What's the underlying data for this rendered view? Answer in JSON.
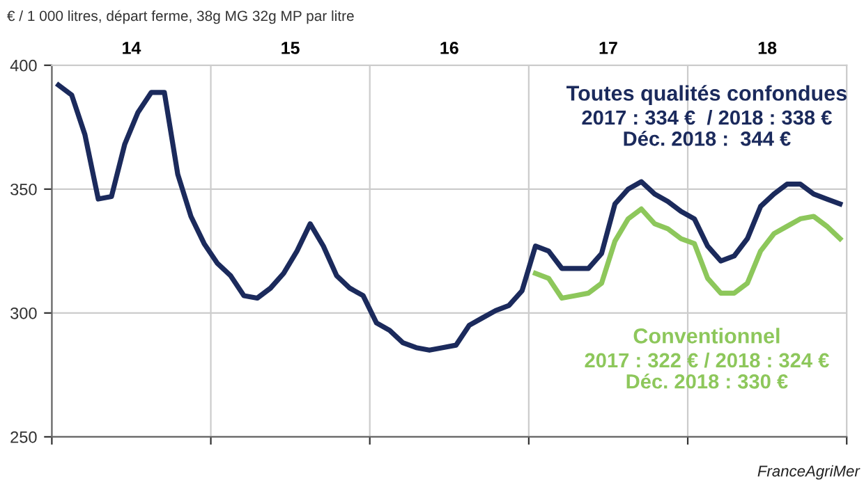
{
  "chart_data": {
    "type": "line",
    "ylabel": "€ / 1 000 litres, départ ferme, 38g MG 32g MP par litre",
    "x": [
      13.542,
      13.625,
      13.708,
      13.792,
      13.875,
      13.958,
      14.042,
      14.125,
      14.208,
      14.292,
      14.375,
      14.458,
      14.542,
      14.625,
      14.708,
      14.792,
      14.875,
      14.958,
      15.042,
      15.125,
      15.208,
      15.292,
      15.375,
      15.458,
      15.542,
      15.625,
      15.708,
      15.792,
      15.875,
      15.958,
      16.042,
      16.125,
      16.208,
      16.292,
      16.375,
      16.458,
      16.542,
      16.625,
      16.708,
      16.792,
      16.875,
      16.958,
      17.042,
      17.125,
      17.208,
      17.292,
      17.375,
      17.458,
      17.542,
      17.625,
      17.708,
      17.792,
      17.875,
      17.958,
      18.042,
      18.125,
      18.208,
      18.292,
      18.375,
      18.458
    ],
    "series": [
      {
        "name": "Toutes qualités confondues",
        "color": "#1b2a5c",
        "values": [
          392,
          388,
          372,
          346,
          347,
          368,
          381,
          389,
          389,
          356,
          339,
          328,
          320,
          315,
          307,
          306,
          310,
          316,
          325,
          336,
          327,
          315,
          310,
          307,
          296,
          293,
          288,
          286,
          285,
          286,
          287,
          295,
          298,
          301,
          303,
          309,
          327,
          325,
          318,
          318,
          318,
          324,
          344,
          350,
          353,
          348,
          345,
          341,
          338,
          327,
          321,
          323,
          330,
          343,
          348,
          352,
          352,
          348,
          346,
          344
        ]
      },
      {
        "name": "Conventionnel",
        "color": "#8dc75b",
        "values": [
          null,
          null,
          null,
          null,
          null,
          null,
          null,
          null,
          null,
          null,
          null,
          null,
          null,
          null,
          null,
          null,
          null,
          null,
          null,
          null,
          null,
          null,
          null,
          null,
          null,
          null,
          null,
          null,
          null,
          null,
          null,
          null,
          null,
          null,
          null,
          null,
          316,
          314,
          306,
          307,
          308,
          312,
          329,
          338,
          342,
          336,
          334,
          330,
          328,
          314,
          308,
          308,
          312,
          325,
          332,
          335,
          338,
          339,
          335,
          330
        ]
      }
    ],
    "annotations": [
      "2017 : 334 €  / 2018 : 338 €\nDéc. 2018 :  344 €",
      "2017 : 322 € / 2018 : 324 €\nDéc. 2018 : 330 €",
      "FranceAgriMer"
    ],
    "xlim": [
      13.5,
      18.5
    ],
    "xticks": [
      14,
      15,
      16,
      17,
      18,
      {
        "value": 13.5,
        "label": null
      },
      {
        "value": 14.5,
        "label": null
      },
      {
        "value": 15.5,
        "label": null
      },
      {
        "value": 16.5,
        "label": null
      },
      {
        "value": 17.5,
        "label": null
      },
      {
        "value": 18.5,
        "label": null
      }
    ],
    "ylim": [
      250,
      400
    ],
    "yticks": [
      250,
      300,
      350,
      400
    ],
    "grid": true,
    "legend": false,
    "marker": "none",
    "line_style": "solid"
  }
}
